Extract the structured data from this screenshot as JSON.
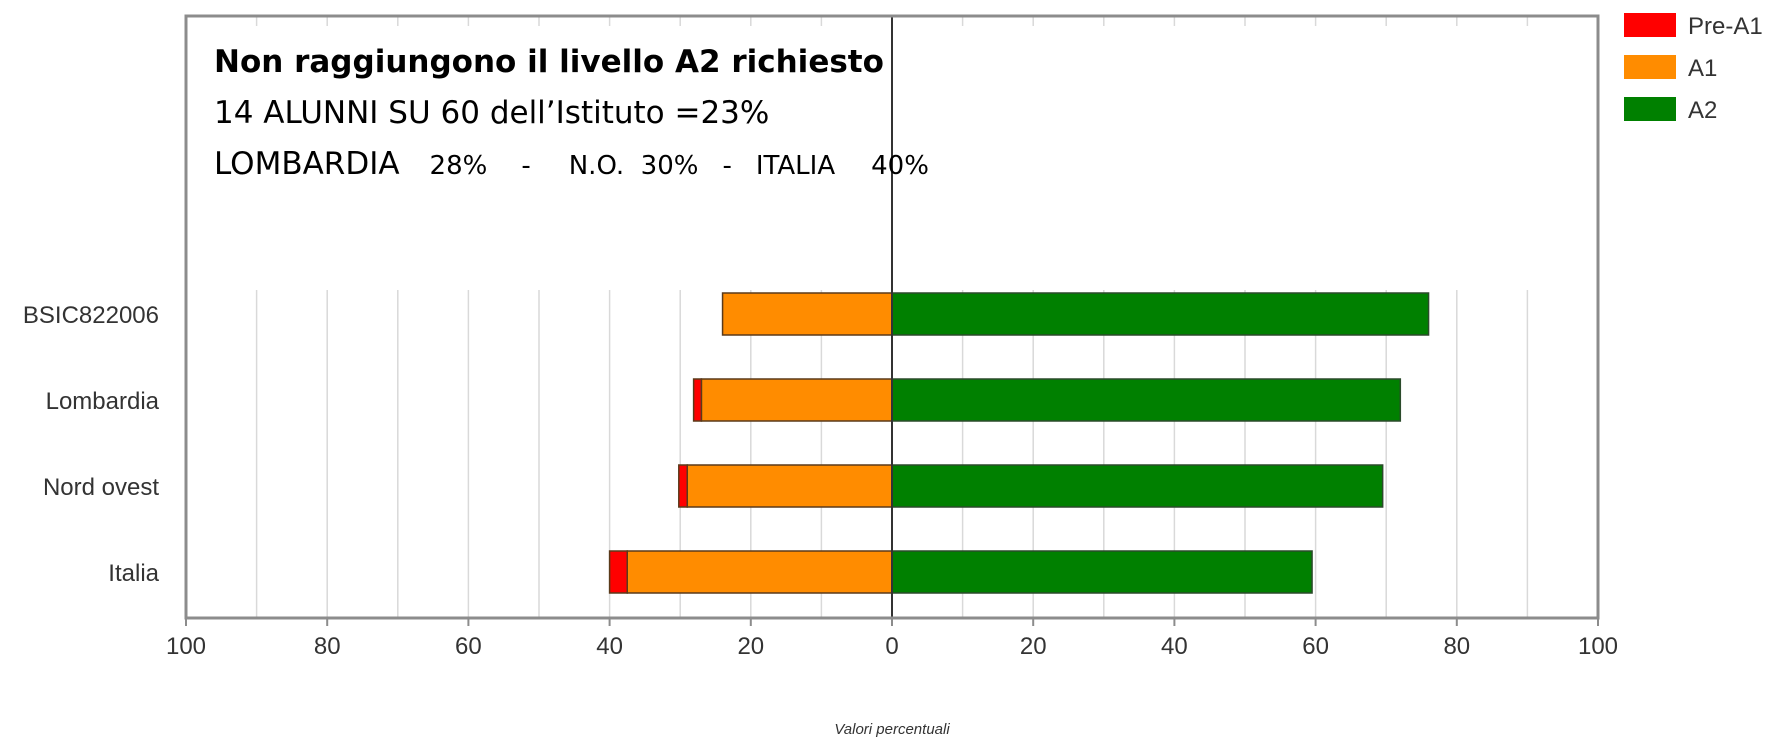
{
  "chart_data": {
    "type": "bar",
    "orientation": "horizontal",
    "stacked": "diverging",
    "categories": [
      "BSIC822006",
      "Lombardia",
      "Nord ovest",
      "Italia"
    ],
    "series": [
      {
        "name": "Pre-A1",
        "side": "negative",
        "color": "#ff0000",
        "values": [
          0.0,
          1.1,
          1.2,
          2.5
        ]
      },
      {
        "name": "A1",
        "side": "negative",
        "color": "#ff8c00",
        "values": [
          24.0,
          27.0,
          29.0,
          37.5
        ]
      },
      {
        "name": "A2",
        "side": "positive",
        "color": "#008000",
        "values": [
          76.0,
          72.0,
          69.5,
          59.5
        ]
      }
    ],
    "xlim": [
      -100,
      100
    ],
    "xticks": [
      -100,
      -80,
      -60,
      -40,
      -20,
      0,
      20,
      40,
      60,
      80,
      100
    ],
    "xticklabels": [
      "100",
      "80",
      "60",
      "40",
      "20",
      "0",
      "20",
      "40",
      "60",
      "80",
      "100"
    ],
    "xlabel": "Valori percentuali",
    "grid": true,
    "legend_position": "top-right"
  },
  "annotation": {
    "title": "Non raggiungono il livello A2 richiesto",
    "line2": "14 ALUNNI SU 60 dell’Istituto =23%",
    "line3_region": "LOMBARDIA",
    "line3_lombardia_pct": "28%",
    "line3_dash1": "-",
    "line3_no": "N.O.  30%",
    "line3_dash2": "-",
    "line3_italia": "ITALIA",
    "line3_italia_pct": "40%"
  }
}
